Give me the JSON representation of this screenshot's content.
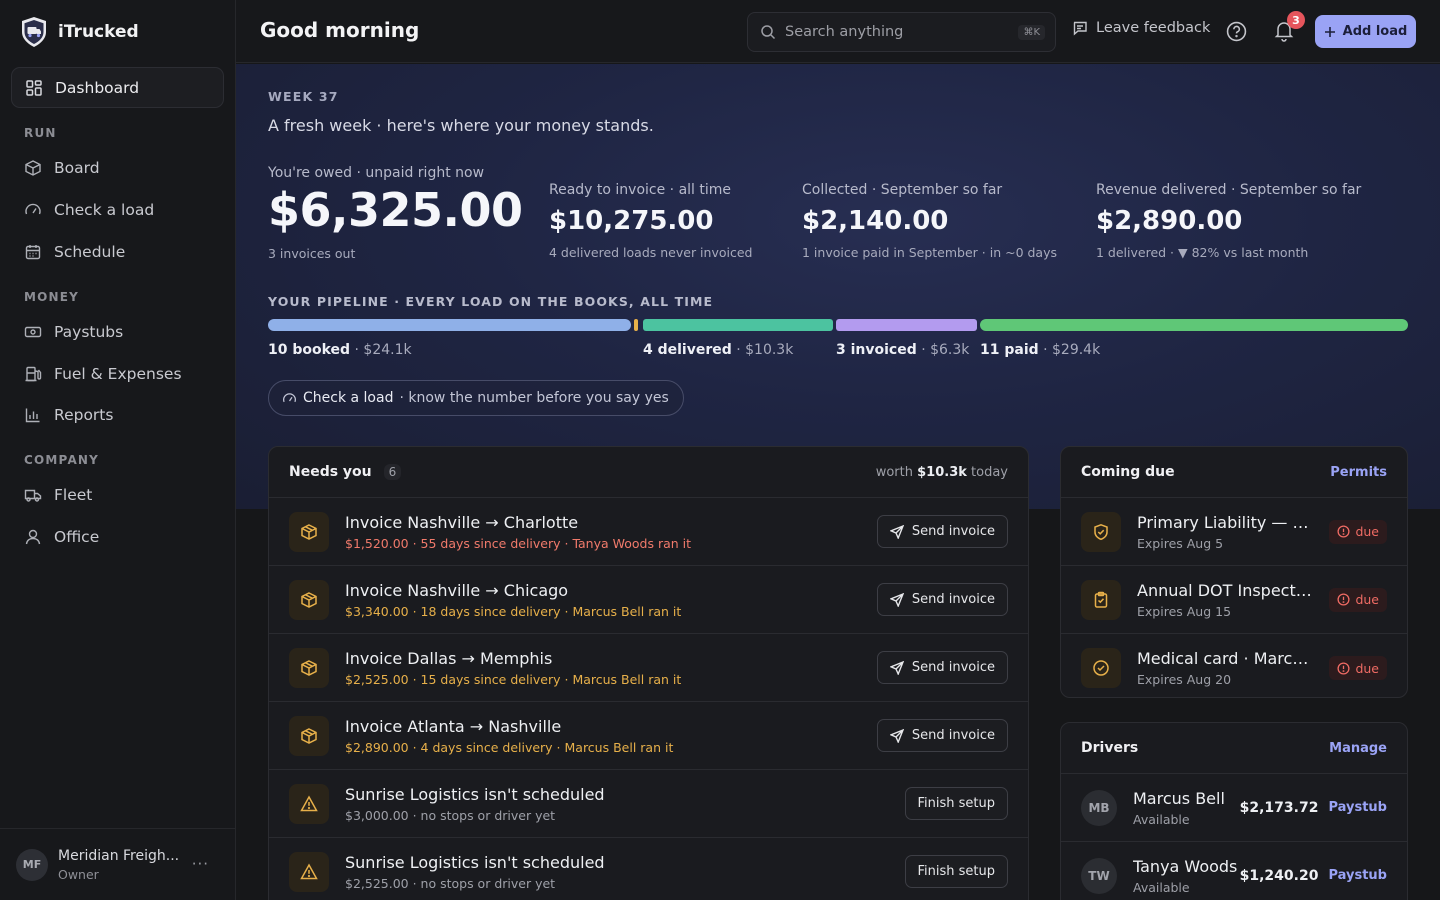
{
  "app": {
    "name": "iTrucked"
  },
  "sidebar": {
    "dashboard": "Dashboard",
    "sections": {
      "run": "RUN",
      "money": "MONEY",
      "company": "COMPANY"
    },
    "run_items": [
      "Board",
      "Check a load",
      "Schedule"
    ],
    "money_items": [
      "Paystubs",
      "Fuel & Expenses",
      "Reports"
    ],
    "company_items": [
      "Fleet",
      "Office"
    ],
    "org": {
      "initials": "MF",
      "name": "Meridian Freigh...",
      "role": "Owner",
      "more": "···"
    }
  },
  "header": {
    "greeting": "Good morning",
    "search_placeholder": "Search anything",
    "search_shortcut": "⌘K",
    "feedback": "Leave feedback",
    "notification_count": "3",
    "add_load": "Add load"
  },
  "hero": {
    "week": "WEEK 37",
    "tagline": "A fresh week · here's where your money stands.",
    "owed": {
      "label": "You're owed · unpaid right now",
      "value": "$6,325.00",
      "sub": "3 invoices out"
    },
    "ready": {
      "label": "Ready to invoice · all time",
      "value": "$10,275.00",
      "sub": "4 delivered loads never invoiced"
    },
    "collected": {
      "label": "Collected · September so far",
      "value": "$2,140.00",
      "sub": "1 invoice paid in September · in ~0 days"
    },
    "revenue": {
      "label": "Revenue delivered · September so far",
      "value": "$2,890.00",
      "sub": "1 delivered · ▼ 82% vs last month"
    },
    "pipeline": {
      "title": "YOUR PIPELINE · EVERY LOAD ON THE BOOKS, ALL TIME",
      "stages": [
        {
          "count": "10 booked",
          "amount": "· $24.1k",
          "color": "#8fb0e8"
        },
        {
          "count": "4 delivered",
          "amount": "· $10.3k",
          "color": "#4cc3a0"
        },
        {
          "count": "3 invoiced",
          "amount": "· $6.3k",
          "color": "#b39bef"
        },
        {
          "count": "11 paid",
          "amount": "· $29.4k",
          "color": "#5fc777"
        }
      ]
    },
    "check_pill": {
      "strong": "Check a load",
      "rest": "· know the number before you say yes"
    }
  },
  "needs_you": {
    "title": "Needs you",
    "count": "6",
    "worth_prefix": "worth",
    "worth_value": "$10.3k",
    "worth_suffix": "today",
    "items": [
      {
        "title": "Invoice Nashville → Charlotte",
        "sub": "$1,520.00 · 55 days since delivery · Tanya Woods ran it",
        "action": "Send invoice"
      },
      {
        "title": "Invoice Nashville → Chicago",
        "sub": "$3,340.00 · 18 days since delivery · Marcus Bell ran it",
        "action": "Send invoice"
      },
      {
        "title": "Invoice Dallas → Memphis",
        "sub": "$2,525.00 · 15 days since delivery · Marcus Bell ran it",
        "action": "Send invoice"
      },
      {
        "title": "Invoice Atlanta → Nashville",
        "sub": "$2,890.00 · 4 days since delivery · Marcus Bell ran it",
        "action": "Send invoice"
      },
      {
        "title": "Sunrise Logistics isn't scheduled",
        "sub": "$3,000.00 · no stops or driver yet",
        "action": "Finish setup"
      },
      {
        "title": "Sunrise Logistics isn't scheduled",
        "sub": "$2,525.00 · no stops or driver yet",
        "action": "Finish setup"
      }
    ]
  },
  "coming_due": {
    "title": "Coming due",
    "link": "Permits",
    "items": [
      {
        "title": "Primary Liability — Pr...",
        "sub": "Expires Aug 5",
        "status": "due"
      },
      {
        "title": "Annual DOT Inspectio...",
        "sub": "Expires Aug 15",
        "status": "due"
      },
      {
        "title": "Medical card · Marcus...",
        "sub": "Expires Aug 20",
        "status": "due"
      }
    ]
  },
  "drivers": {
    "title": "Drivers",
    "link": "Manage",
    "items": [
      {
        "initials": "MB",
        "name": "Marcus Bell",
        "status": "Available",
        "amount": "$2,173.72",
        "link": "Paystub"
      },
      {
        "initials": "TW",
        "name": "Tanya Woods",
        "status": "Available",
        "amount": "$1,240.20",
        "link": "Paystub"
      }
    ]
  }
}
